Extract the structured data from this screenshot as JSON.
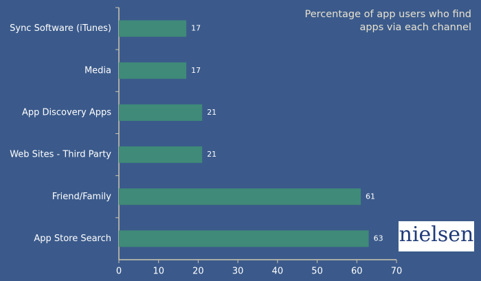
{
  "chart_data": {
    "type": "barh",
    "title": "Percentage of app users who find apps via each channel",
    "categories": [
      "Sync Software (iTunes)",
      "Media",
      "App Discovery Apps",
      "Web Sites - Third Party",
      "Friend/Family",
      "App Store Search"
    ],
    "values": [
      17,
      17,
      21,
      21,
      61,
      63
    ],
    "color": "#3f8a78",
    "xlim": [
      0,
      70
    ],
    "xticks": [
      0,
      10,
      20,
      30,
      40,
      50,
      60,
      70
    ]
  },
  "logo": "nielsen"
}
